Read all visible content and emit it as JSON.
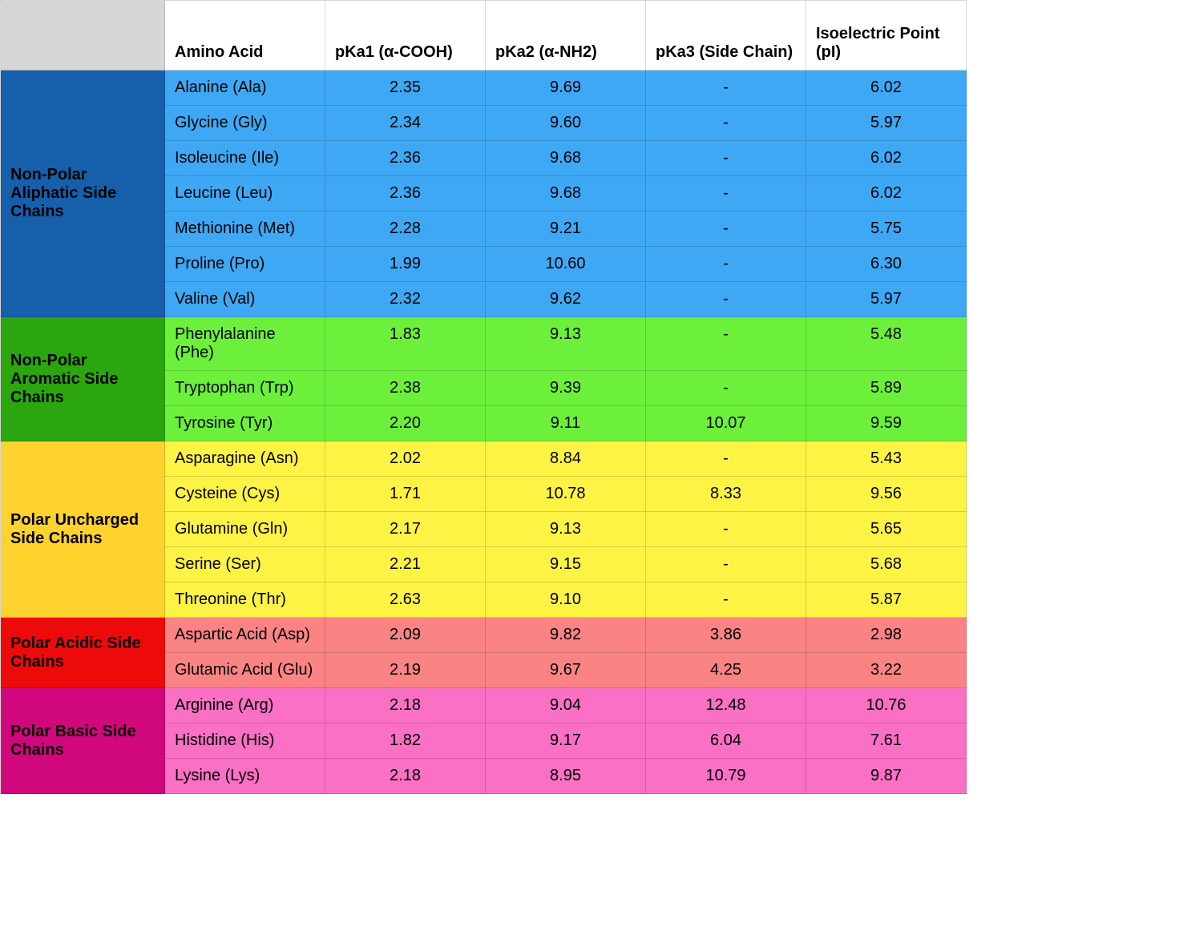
{
  "columns": [
    "Amino Acid",
    "pKa1 (α-COOH)",
    "pKa2 (α-NH2)",
    "pKa3 (Side Chain)",
    "Isoelectric Point (pI)"
  ],
  "groups": [
    {
      "label": "Non-Polar Aliphatic Side Chains",
      "group_color": "#1660ab",
      "row_color": "#3ea8f4",
      "rows": [
        {
          "name": "Alanine (Ala)",
          "pka1": "2.35",
          "pka2": "9.69",
          "pka3": "-",
          "pi": "6.02"
        },
        {
          "name": "Glycine (Gly)",
          "pka1": "2.34",
          "pka2": "9.60",
          "pka3": "-",
          "pi": "5.97"
        },
        {
          "name": "Isoleucine (Ile)",
          "pka1": "2.36",
          "pka2": "9.68",
          "pka3": "-",
          "pi": "6.02"
        },
        {
          "name": "Leucine (Leu)",
          "pka1": "2.36",
          "pka2": "9.68",
          "pka3": "-",
          "pi": "6.02"
        },
        {
          "name": "Methionine (Met)",
          "pka1": "2.28",
          "pka2": "9.21",
          "pka3": "-",
          "pi": "5.75"
        },
        {
          "name": "Proline (Pro)",
          "pka1": "1.99",
          "pka2": "10.60",
          "pka3": "-",
          "pi": "6.30"
        },
        {
          "name": "Valine (Val)",
          "pka1": "2.32",
          "pka2": "9.62",
          "pka3": "-",
          "pi": "5.97"
        }
      ]
    },
    {
      "label": "Non-Polar Aromatic Side Chains",
      "group_color": "#2ba60e",
      "row_color": "#6cf03b",
      "rows": [
        {
          "name": "Phenylalanine (Phe)",
          "pka1": "1.83",
          "pka2": "9.13",
          "pka3": "-",
          "pi": "5.48"
        },
        {
          "name": "Tryptophan (Trp)",
          "pka1": "2.38",
          "pka2": "9.39",
          "pka3": "-",
          "pi": "5.89"
        },
        {
          "name": "Tyrosine (Tyr)",
          "pka1": "2.20",
          "pka2": "9.11",
          "pka3": "10.07",
          "pi": "9.59"
        }
      ]
    },
    {
      "label": "Polar Uncharged Side Chains",
      "group_color": "#ffd22e",
      "row_color": "#fdf345",
      "rows": [
        {
          "name": "Asparagine (Asn)",
          "pka1": "2.02",
          "pka2": "8.84",
          "pka3": "-",
          "pi": "5.43"
        },
        {
          "name": "Cysteine (Cys)",
          "pka1": "1.71",
          "pka2": "10.78",
          "pka3": "8.33",
          "pi": "9.56"
        },
        {
          "name": "Glutamine (Gln)",
          "pka1": "2.17",
          "pka2": "9.13",
          "pka3": "-",
          "pi": "5.65"
        },
        {
          "name": "Serine (Ser)",
          "pka1": "2.21",
          "pka2": "9.15",
          "pka3": "-",
          "pi": "5.68"
        },
        {
          "name": "Threonine (Thr)",
          "pka1": "2.63",
          "pka2": "9.10",
          "pka3": "-",
          "pi": "5.87"
        }
      ]
    },
    {
      "label": "Polar Acidic Side Chains",
      "group_color": "#ec0a0a",
      "row_color": "#fa8383",
      "rows": [
        {
          "name": "Aspartic Acid (Asp)",
          "pka1": "2.09",
          "pka2": "9.82",
          "pka3": "3.86",
          "pi": "2.98"
        },
        {
          "name": "Glutamic Acid (Glu)",
          "pka1": "2.19",
          "pka2": "9.67",
          "pka3": "4.25",
          "pi": "3.22"
        }
      ]
    },
    {
      "label": "Polar Basic Side Chains",
      "group_color": "#d1077c",
      "row_color": "#f970c4",
      "rows": [
        {
          "name": "Arginine (Arg)",
          "pka1": "2.18",
          "pka2": "9.04",
          "pka3": "12.48",
          "pi": "10.76"
        },
        {
          "name": "Histidine (His)",
          "pka1": "1.82",
          "pka2": "9.17",
          "pka3": "6.04",
          "pi": "7.61"
        },
        {
          "name": "Lysine (Lys)",
          "pka1": "2.18",
          "pka2": "8.95",
          "pka3": "10.79",
          "pi": "9.87"
        }
      ]
    }
  ]
}
